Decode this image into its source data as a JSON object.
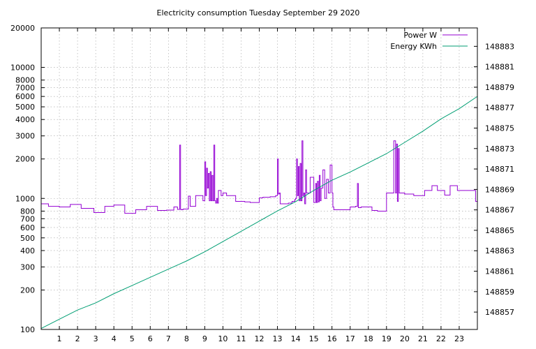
{
  "chart_data": {
    "type": "line",
    "title": "Electricity consumption Tuesday September 29 2020",
    "xlabel": "",
    "ylabel": "",
    "y2label": "",
    "x_range": [
      0,
      24
    ],
    "x_ticks": [
      1,
      2,
      3,
      4,
      5,
      6,
      7,
      8,
      9,
      10,
      11,
      12,
      13,
      14,
      15,
      16,
      17,
      18,
      19,
      20,
      21,
      22,
      23
    ],
    "y_scale": "log",
    "y_range": [
      100,
      20000
    ],
    "y_ticks": [
      100,
      200,
      300,
      400,
      500,
      600,
      700,
      800,
      1000,
      2000,
      3000,
      4000,
      5000,
      6000,
      7000,
      8000,
      10000,
      20000
    ],
    "y2_range": [
      148855.3,
      148884.8
    ],
    "y2_ticks": [
      148857,
      148859,
      148861,
      148863,
      148865,
      148867,
      148869,
      148871,
      148873,
      148875,
      148877,
      148879,
      148881,
      148883
    ],
    "grid": true,
    "legend_position": "top-right",
    "series": [
      {
        "name": "Power W",
        "axis": "y",
        "color": "#9400d3",
        "style": "step",
        "x": [
          0,
          0.4,
          1,
          1.6,
          2.2,
          2.9,
          3.5,
          4.0,
          4.6,
          5.2,
          5.8,
          6.4,
          6.9,
          7.3,
          7.5,
          7.62,
          7.67,
          7.7,
          7.8,
          8.1,
          8.2,
          8.5,
          8.9,
          9.0,
          9.05,
          9.1,
          9.15,
          9.2,
          9.25,
          9.3,
          9.35,
          9.4,
          9.45,
          9.5,
          9.55,
          9.6,
          9.65,
          9.7,
          9.75,
          9.9,
          10,
          10.2,
          10.7,
          11.2,
          11.5,
          12.0,
          12.2,
          12.6,
          12.9,
          13.0,
          13.05,
          13.1,
          13.15,
          13.6,
          13.8,
          13.95,
          14.0,
          14.05,
          14.1,
          14.15,
          14.2,
          14.25,
          14.3,
          14.35,
          14.4,
          14.45,
          14.5,
          14.55,
          14.6,
          14.8,
          15.0,
          15.05,
          15.1,
          15.15,
          15.2,
          15.25,
          15.3,
          15.35,
          15.4,
          15.5,
          15.6,
          15.7,
          15.8,
          15.9,
          16.0,
          16.05,
          16.1,
          16.2,
          16.5,
          17.0,
          17.3,
          17.4,
          17.45,
          17.6,
          17.9,
          18.2,
          18.5,
          18.7,
          19.0,
          19.3,
          19.4,
          19.5,
          19.55,
          19.6,
          19.65,
          19.7,
          19.8,
          20.0,
          20.5,
          20.8,
          21.1,
          21.5,
          21.8,
          22.2,
          22.5,
          22.9,
          23.3,
          23.6,
          23.9
        ],
        "values": [
          910,
          870,
          860,
          900,
          840,
          780,
          870,
          890,
          770,
          820,
          870,
          810,
          815,
          860,
          825,
          2550,
          825,
          820,
          830,
          1040,
          870,
          1050,
          960,
          1900,
          1050,
          1700,
          1200,
          1550,
          960,
          1600,
          960,
          1500,
          960,
          2550,
          960,
          920,
          1000,
          920,
          1150,
          1050,
          1100,
          1050,
          950,
          940,
          930,
          1010,
          1020,
          1030,
          1050,
          2000,
          1080,
          1100,
          910,
          920,
          950,
          980,
          1000,
          2000,
          1050,
          1750,
          960,
          1850,
          960,
          2750,
          1050,
          1100,
          910,
          1650,
          1100,
          1450,
          930,
          930,
          1300,
          930,
          1350,
          940,
          1500,
          960,
          1200,
          1650,
          1000,
          1400,
          1100,
          1800,
          1100,
          860,
          820,
          820,
          820,
          860,
          870,
          1300,
          850,
          860,
          860,
          810,
          800,
          800,
          1100,
          1100,
          2750,
          1100,
          2600,
          950,
          2400,
          1100,
          1100,
          1080,
          1050,
          1050,
          1150,
          1250,
          1150,
          1060,
          1250,
          1150,
          1150,
          1150,
          950
        ]
      },
      {
        "name": "Energy KWh",
        "axis": "y2",
        "color": "#009e73",
        "style": "line",
        "x": [
          0,
          1,
          2,
          3,
          4,
          5,
          6,
          7,
          8,
          9,
          10,
          11,
          12,
          13,
          14,
          15,
          16,
          17,
          18,
          19,
          20,
          21,
          22,
          23,
          24
        ],
        "values": [
          148855.4,
          148856.3,
          148857.2,
          148857.9,
          148858.8,
          148859.6,
          148860.4,
          148861.2,
          148862.0,
          148862.9,
          148863.9,
          148864.9,
          148865.9,
          148866.9,
          148867.8,
          148868.9,
          148869.9,
          148870.7,
          148871.6,
          148872.5,
          148873.6,
          148874.7,
          148875.9,
          148876.9,
          148878.1
        ]
      }
    ]
  }
}
